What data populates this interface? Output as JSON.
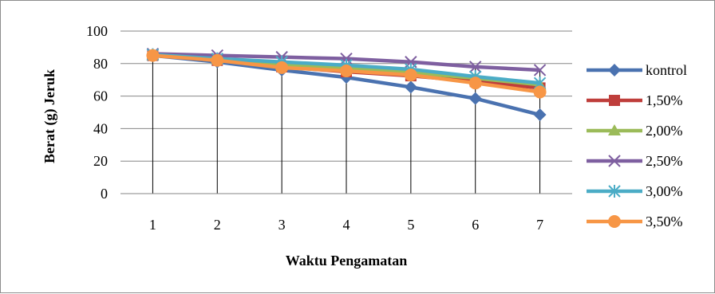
{
  "chart_data": {
    "type": "line",
    "xlabel": "Waktu Pengamatan",
    "ylabel": "Berat (g) Jeruk",
    "ylim": [
      0,
      100
    ],
    "yticks": [
      0,
      20,
      40,
      60,
      80,
      100
    ],
    "x": [
      1,
      2,
      3,
      4,
      5,
      6,
      7
    ],
    "grid": true,
    "drop_lines": true,
    "legend_position": "right",
    "series": [
      {
        "name": "kontrol",
        "color": "#4a72b0",
        "marker": "diamond",
        "values": [
          85,
          81,
          76,
          71.5,
          65.5,
          58.5,
          48.5
        ]
      },
      {
        "name": "1,50%",
        "color": "#bf3e3b",
        "marker": "square",
        "values": [
          85,
          82,
          78,
          75,
          72.5,
          69,
          65
        ]
      },
      {
        "name": "2,00%",
        "color": "#9bbb59",
        "marker": "triangle",
        "values": [
          85,
          82.5,
          79,
          77,
          74.5,
          71,
          67
        ]
      },
      {
        "name": "2,50%",
        "color": "#7e5fa0",
        "marker": "x",
        "values": [
          86,
          85,
          84,
          83,
          81,
          78,
          76
        ]
      },
      {
        "name": "3,00%",
        "color": "#4bacc6",
        "marker": "star",
        "values": [
          85.5,
          83,
          81,
          79,
          76.5,
          72,
          68
        ]
      },
      {
        "name": "3,50%",
        "color": "#f79646",
        "marker": "circle",
        "values": [
          85,
          82,
          77.5,
          75.5,
          73,
          68,
          62.5
        ]
      }
    ]
  }
}
